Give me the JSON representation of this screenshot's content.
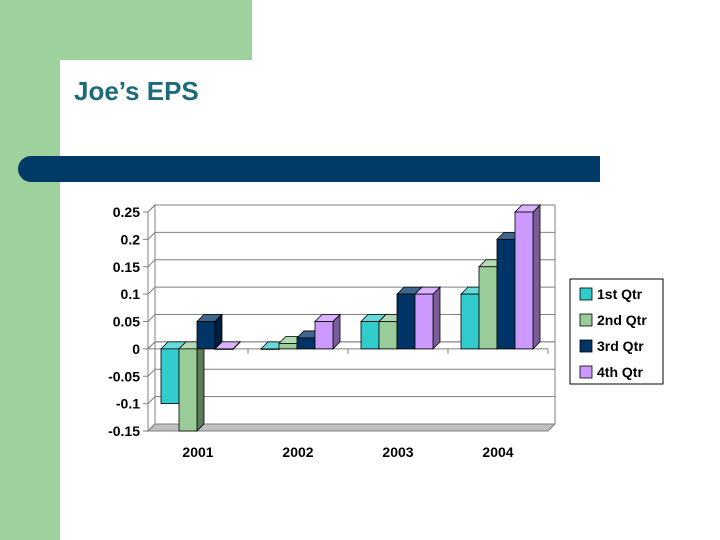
{
  "slide": {
    "title": "Joe’s EPS",
    "colors": {
      "green_band": "#9dd19d",
      "title_text": "#1c6b7a",
      "title_bar": "#003a66"
    }
  },
  "chart_data": {
    "type": "bar",
    "title": "",
    "xlabel": "",
    "ylabel": "",
    "categories": [
      "2001",
      "2002",
      "2003",
      "2004"
    ],
    "ylim": [
      -0.15,
      0.25
    ],
    "yticks": [
      0.25,
      0.2,
      0.15,
      0.1,
      0.05,
      0,
      -0.05,
      -0.1,
      -0.15
    ],
    "ytick_labels": [
      "0.25",
      "0.2",
      "0.15",
      "0.1",
      "0.05",
      "0",
      "-0.05",
      "-0.1",
      "-0.15"
    ],
    "grid": true,
    "three_d": true,
    "legend_position": "right",
    "series": [
      {
        "name": "1st Qtr",
        "color": "#33cccc",
        "values": [
          -0.1,
          0.0,
          0.05,
          0.1
        ]
      },
      {
        "name": "2nd Qtr",
        "color": "#99cc99",
        "values": [
          -0.15,
          0.01,
          0.05,
          0.15
        ]
      },
      {
        "name": "3rd Qtr",
        "color": "#003366",
        "values": [
          0.05,
          0.02,
          0.1,
          0.2
        ]
      },
      {
        "name": "4th Qtr",
        "color": "#cc99ff",
        "values": [
          0.0,
          0.05,
          0.1,
          0.25
        ]
      }
    ]
  }
}
